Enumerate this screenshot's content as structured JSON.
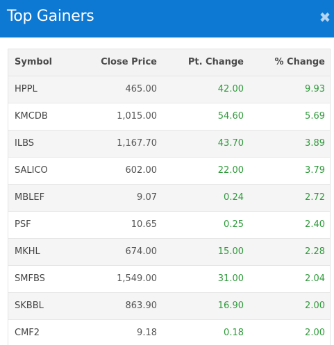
{
  "header": {
    "title": "Top Gainers",
    "close_glyph": "✖",
    "close_icon": "close-icon",
    "background_color": "#0e79d3"
  },
  "table": {
    "columns": [
      "Symbol",
      "Close Price",
      "Pt. Change",
      "% Change"
    ],
    "gain_color": "#2e9a3a",
    "rows": [
      {
        "symbol": "HPPL",
        "close": "465.00",
        "pt": "42.00",
        "pct": "9.93"
      },
      {
        "symbol": "KMCDB",
        "close": "1,015.00",
        "pt": "54.60",
        "pct": "5.69"
      },
      {
        "symbol": "ILBS",
        "close": "1,167.70",
        "pt": "43.70",
        "pct": "3.89"
      },
      {
        "symbol": "SALICO",
        "close": "602.00",
        "pt": "22.00",
        "pct": "3.79"
      },
      {
        "symbol": "MBLEF",
        "close": "9.07",
        "pt": "0.24",
        "pct": "2.72"
      },
      {
        "symbol": "PSF",
        "close": "10.65",
        "pt": "0.25",
        "pct": "2.40"
      },
      {
        "symbol": "MKHL",
        "close": "674.00",
        "pt": "15.00",
        "pct": "2.28"
      },
      {
        "symbol": "SMFBS",
        "close": "1,549.00",
        "pt": "31.00",
        "pct": "2.04"
      },
      {
        "symbol": "SKBBL",
        "close": "863.90",
        "pt": "16.90",
        "pct": "2.00"
      },
      {
        "symbol": "CMF2",
        "close": "9.18",
        "pt": "0.18",
        "pct": "2.00"
      }
    ]
  }
}
